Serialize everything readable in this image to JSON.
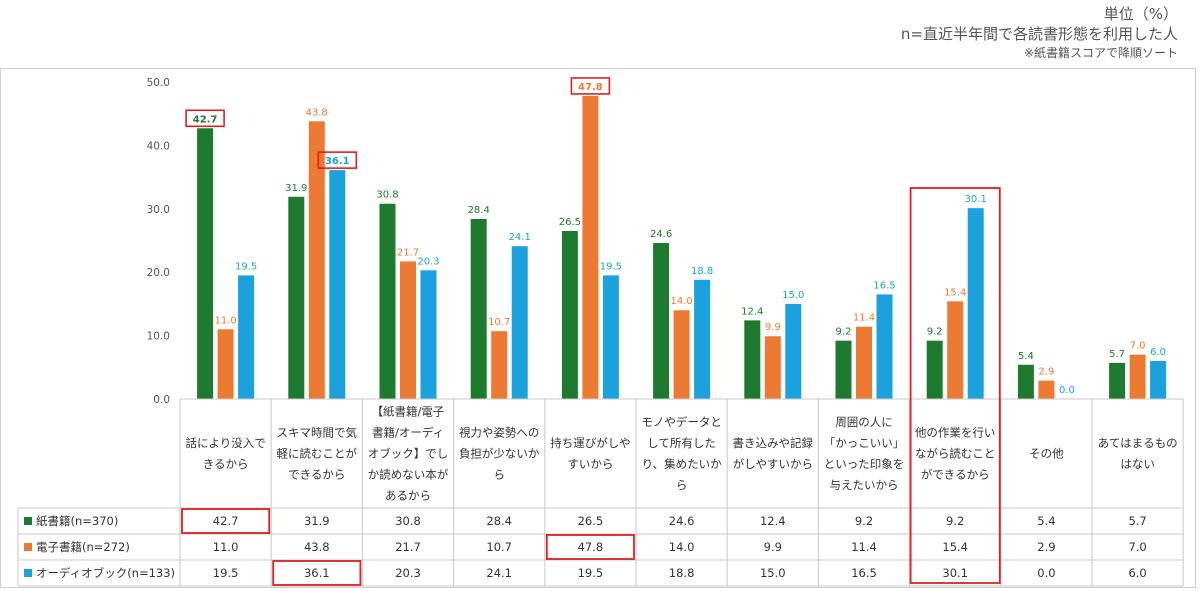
{
  "header": {
    "unit": "単位（%）",
    "basis": "n=直近半年間で各読書形態を利用した人",
    "sort_note": "※紙書籍スコアで降順ソート"
  },
  "chart_data": {
    "type": "bar",
    "ylim": [
      0,
      50
    ],
    "yticks": [
      "0.0",
      "10.0",
      "20.0",
      "30.0",
      "40.0",
      "50.0"
    ],
    "grid": false,
    "categories": [
      [
        "話により没入で",
        "きるから"
      ],
      [
        "スキマ時間で気",
        "軽に読むことが",
        "できるから"
      ],
      [
        "【紙書籍/電子",
        "書籍/オーディ",
        "オブック】でし",
        "か読めない本が",
        "あるから"
      ],
      [
        "視力や姿勢への",
        "負担が少ないか",
        "ら"
      ],
      [
        "持ち運びがしや",
        "すいから"
      ],
      [
        "モノやデータと",
        "して所有した",
        "り、集めたいか",
        "ら"
      ],
      [
        "書き込みや記録",
        "がしやすいから"
      ],
      [
        "周囲の人に",
        "「かっこいい」",
        "といった印象を",
        "与えたいから"
      ],
      [
        "他の作業を行い",
        "ながら読むこと",
        "ができるから"
      ],
      [
        "その他"
      ],
      [
        "あてはまるもの",
        "はない"
      ]
    ],
    "series": [
      {
        "name": "紙書籍(n=370)",
        "color": "#1e7a2e",
        "labelColor": "#1e7a2e",
        "values": [
          42.7,
          31.9,
          30.8,
          28.4,
          26.5,
          24.6,
          12.4,
          9.2,
          9.2,
          5.4,
          5.7
        ]
      },
      {
        "name": "電子書籍(n=272)",
        "color": "#ed7a33",
        "labelColor": "#ed7a33",
        "values": [
          11.0,
          43.8,
          21.7,
          10.7,
          47.8,
          14.0,
          9.9,
          11.4,
          15.4,
          2.9,
          7.0
        ]
      },
      {
        "name": "オーディオブック(n=133)",
        "color": "#1ba2dc",
        "labelColor": "#1ba2dc",
        "values": [
          19.5,
          36.1,
          20.3,
          24.1,
          19.5,
          18.8,
          15.0,
          16.5,
          30.1,
          0.0,
          6.0
        ]
      }
    ],
    "highlights": [
      {
        "series": 0,
        "category": 0
      },
      {
        "series": 1,
        "category": 4
      },
      {
        "series": 2,
        "category": 1
      }
    ],
    "highlight_column": 8,
    "highlight_color": "#e02020"
  }
}
